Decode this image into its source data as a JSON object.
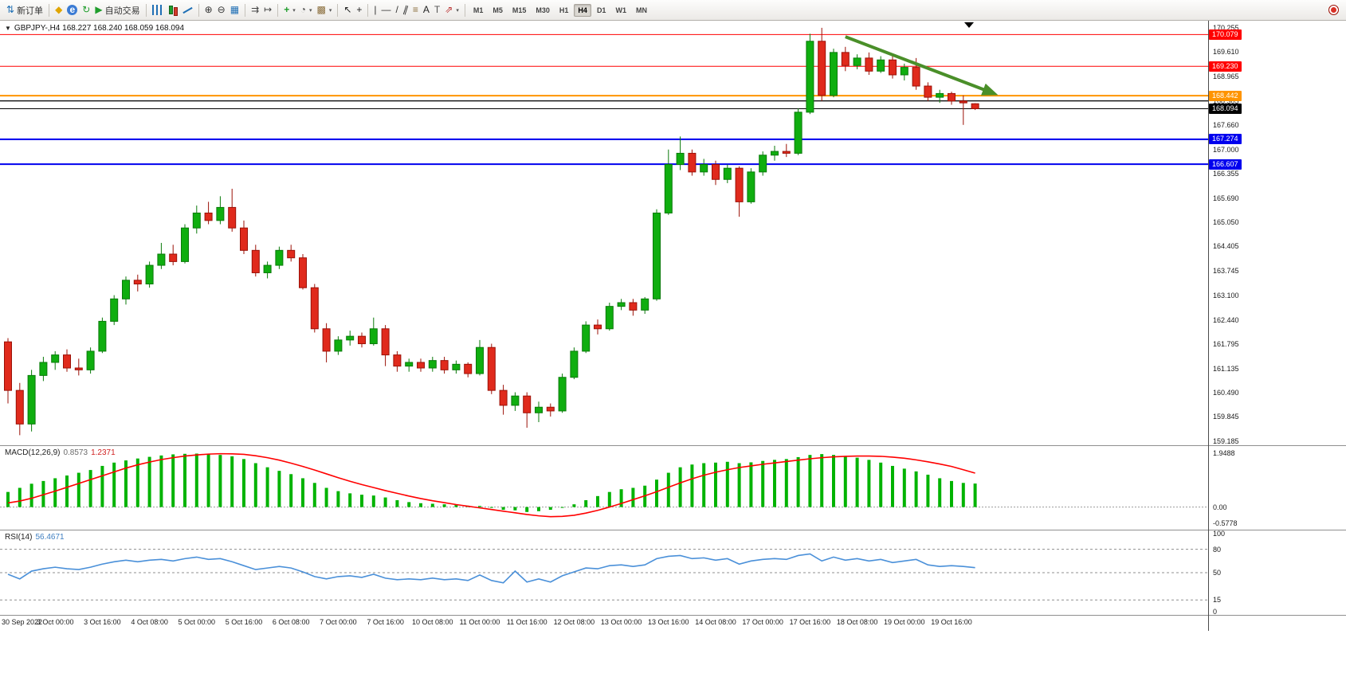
{
  "toolbar": {
    "items": [
      {
        "kind": "button",
        "name": "new-order",
        "icon": "new-order-icon",
        "glyph": "⇅",
        "color": "#1f6fb5",
        "label": "新订单"
      },
      {
        "kind": "sep"
      },
      {
        "kind": "button",
        "name": "metaquotes",
        "icon": "metaquotes-icon",
        "glyph": "◆",
        "color": "#e0a500"
      },
      {
        "kind": "button",
        "name": "community",
        "icon": "community-icon",
        "glyph": "e",
        "color": "#ffffff",
        "circle": "#3b7bd4"
      },
      {
        "kind": "button",
        "name": "refresh",
        "icon": "refresh-icon",
        "glyph": "↻",
        "color": "#1f9d2c"
      },
      {
        "kind": "button",
        "name": "auto-trading",
        "icon": "autotrade-play-icon",
        "glyph": "▶",
        "color": "#1f9d2c",
        "label": "自动交易"
      },
      {
        "kind": "sep"
      },
      {
        "kind": "button",
        "name": "chart-bars",
        "icon": "bar-chart-icon",
        "cls": "i-bars"
      },
      {
        "kind": "button",
        "name": "chart-candles",
        "icon": "candlestick-icon",
        "cls": "i-candles"
      },
      {
        "kind": "button",
        "name": "chart-line",
        "icon": "line-chart-icon",
        "cls": "i-line"
      },
      {
        "kind": "sep"
      },
      {
        "kind": "button",
        "name": "zoom-in",
        "icon": "zoom-in-icon",
        "glyph": "⊕",
        "color": "#333333"
      },
      {
        "kind": "button",
        "name": "zoom-out",
        "icon": "zoom-out-icon",
        "glyph": "⊖",
        "color": "#333333"
      },
      {
        "kind": "button",
        "name": "tile-windows",
        "icon": "tile-windows-icon",
        "glyph": "▦",
        "color": "#1f6fb5"
      },
      {
        "kind": "sep"
      },
      {
        "kind": "button",
        "name": "auto-scroll",
        "icon": "auto-scroll-icon",
        "glyph": "⇉",
        "color": "#444444"
      },
      {
        "kind": "button",
        "name": "chart-shift",
        "icon": "chart-shift-icon",
        "glyph": "↦",
        "color": "#444444"
      },
      {
        "kind": "sep"
      },
      {
        "kind": "button",
        "name": "indicators",
        "icon": "indicators-plus-icon",
        "glyph": "+",
        "color": "#1f9d2c",
        "bold": true,
        "caret": true
      },
      {
        "kind": "button",
        "name": "periods",
        "icon": "clock-icon",
        "glyph": "◔",
        "color": "#555555",
        "caret": true
      },
      {
        "kind": "button",
        "name": "templates",
        "icon": "template-icon",
        "glyph": "▩",
        "color": "#8a6d3b",
        "caret": true
      },
      {
        "kind": "sep"
      },
      {
        "kind": "button",
        "name": "cursor",
        "icon": "cursor-arrow-icon",
        "glyph": "↖",
        "color": "#222222"
      },
      {
        "kind": "button",
        "name": "crosshair",
        "icon": "crosshair-icon",
        "glyph": "+",
        "color": "#222222"
      },
      {
        "kind": "sep"
      },
      {
        "kind": "button",
        "name": "vertical-line",
        "icon": "vertical-line-icon",
        "glyph": "|",
        "color": "#333333"
      },
      {
        "kind": "button",
        "name": "horizontal-line",
        "icon": "horizontal-line-icon",
        "glyph": "—",
        "color": "#333333"
      },
      {
        "kind": "button",
        "name": "trendline",
        "icon": "trendline-icon",
        "glyph": "/",
        "color": "#333333"
      },
      {
        "kind": "button",
        "name": "channel",
        "icon": "channel-icon",
        "glyph": "∥",
        "color": "#333333",
        "tilt": true
      },
      {
        "kind": "button",
        "name": "fibonacci",
        "icon": "fibonacci-icon",
        "glyph": "≡",
        "color": "#8a6d3b"
      },
      {
        "kind": "button",
        "name": "text",
        "icon": "text-icon",
        "glyph": "A",
        "color": "#222222"
      },
      {
        "kind": "button",
        "name": "text-label",
        "icon": "text-label-icon",
        "glyph": "T",
        "color": "#555555"
      },
      {
        "kind": "button",
        "name": "arrows",
        "icon": "arrow-object-icon",
        "glyph": "⇗",
        "color": "#bb3333",
        "caret": true
      },
      {
        "kind": "sep"
      }
    ],
    "timeframes": [
      "M1",
      "M5",
      "M15",
      "M30",
      "H1",
      "H4",
      "D1",
      "W1",
      "MN"
    ],
    "active_timeframe": "H4"
  },
  "chart": {
    "title": "GBPJPY-,H4 168.227 168.240 168.059 168.094",
    "collapse_arrow": "▼"
  },
  "indicators": {
    "macd": {
      "label": "MACD(12,26,9)",
      "value_main": "0.8573",
      "value_signal": "1.2371"
    },
    "rsi": {
      "label": "RSI(14)",
      "value": "56.4671"
    }
  },
  "chart_data": [
    {
      "type": "candlestick",
      "symbol": "GBPJPY-",
      "timeframe": "H4",
      "last_ohlc": {
        "open": 168.227,
        "high": 168.24,
        "low": 168.059,
        "close": 168.094
      },
      "ylim": [
        159.06,
        170.45
      ],
      "grid": false,
      "axis_ticks": [
        "170.255",
        "169.610",
        "168.965",
        "168.305",
        "167.660",
        "167.000",
        "166.355",
        "165.690",
        "165.050",
        "164.405",
        "163.745",
        "163.100",
        "162.440",
        "161.795",
        "161.135",
        "160.490",
        "159.845",
        "159.185"
      ],
      "hlines": [
        {
          "price": 170.079,
          "label": "170.079",
          "color": "#ff0000",
          "width": 1,
          "tag": true
        },
        {
          "price": 169.23,
          "label": "169.230",
          "color": "#ff0000",
          "width": 1,
          "tag": true
        },
        {
          "price": 168.442,
          "label": "168.442",
          "color": "#ff9400",
          "width": 2,
          "tag": true
        },
        {
          "price": 168.305,
          "label": null,
          "color": "#1a1a1a",
          "width": 1.5,
          "tag": false
        },
        {
          "price": 167.274,
          "label": "167.274",
          "color": "#0000ee",
          "width": 2,
          "tag": true
        },
        {
          "price": 166.607,
          "label": "166.607",
          "color": "#0000ee",
          "width": 2,
          "tag": true
        }
      ],
      "bid": {
        "price": 168.094,
        "label": "168.094",
        "color": "#000000"
      },
      "trend_arrow": {
        "from_index": 71,
        "from_price": 170.02,
        "to_index": 83.6,
        "to_price": 168.5,
        "color": "#4a8f29"
      },
      "colors": {
        "up": "#0fae0f",
        "up_border": "#0a7a0a",
        "down": "#e02a1c",
        "down_border": "#9b1107"
      },
      "x_labels": [
        "30 Sep 2022",
        "3 Oct 00:00",
        "3 Oct 16:00",
        "4 Oct 08:00",
        "5 Oct 00:00",
        "5 Oct 16:00",
        "6 Oct 08:00",
        "7 Oct 00:00",
        "7 Oct 16:00",
        "10 Oct 08:00",
        "11 Oct 00:00",
        "11 Oct 16:00",
        "12 Oct 08:00",
        "13 Oct 00:00",
        "13 Oct 16:00",
        "14 Oct 08:00",
        "17 Oct 00:00",
        "17 Oct 16:00",
        "18 Oct 08:00",
        "19 Oct 00:00",
        "19 Oct 16:00"
      ],
      "x_label_every_n_candles": 4,
      "candles_ohlc": [
        [
          161.85,
          161.95,
          160.2,
          160.55
        ],
        [
          160.55,
          160.75,
          159.35,
          159.65
        ],
        [
          159.65,
          161.1,
          159.45,
          160.95
        ],
        [
          160.95,
          161.45,
          160.8,
          161.3
        ],
        [
          161.3,
          161.6,
          161.1,
          161.5
        ],
        [
          161.5,
          161.65,
          161.05,
          161.15
        ],
        [
          161.15,
          161.4,
          160.95,
          161.1
        ],
        [
          161.1,
          161.7,
          161.0,
          161.6
        ],
        [
          161.6,
          162.5,
          161.55,
          162.4
        ],
        [
          162.4,
          163.1,
          162.3,
          163.0
        ],
        [
          163.0,
          163.6,
          162.85,
          163.5
        ],
        [
          163.5,
          163.65,
          163.2,
          163.4
        ],
        [
          163.4,
          164.0,
          163.3,
          163.9
        ],
        [
          163.9,
          164.5,
          163.8,
          164.2
        ],
        [
          164.2,
          164.45,
          163.9,
          164.0
        ],
        [
          164.0,
          165.0,
          163.95,
          164.9
        ],
        [
          164.9,
          165.5,
          164.75,
          165.3
        ],
        [
          165.3,
          165.6,
          165.0,
          165.1
        ],
        [
          165.1,
          165.75,
          165.0,
          165.45
        ],
        [
          165.45,
          165.95,
          164.8,
          164.9
        ],
        [
          164.9,
          165.1,
          164.2,
          164.3
        ],
        [
          164.3,
          164.45,
          163.6,
          163.7
        ],
        [
          163.7,
          164.0,
          163.55,
          163.9
        ],
        [
          163.9,
          164.4,
          163.8,
          164.3
        ],
        [
          164.3,
          164.45,
          164.0,
          164.1
        ],
        [
          164.1,
          164.2,
          163.25,
          163.3
        ],
        [
          163.3,
          163.4,
          162.1,
          162.2
        ],
        [
          162.2,
          162.35,
          161.3,
          161.6
        ],
        [
          161.6,
          162.0,
          161.5,
          161.9
        ],
        [
          161.9,
          162.15,
          161.75,
          162.0
        ],
        [
          162.0,
          162.1,
          161.7,
          161.8
        ],
        [
          161.8,
          162.5,
          161.75,
          162.2
        ],
        [
          162.2,
          162.3,
          161.2,
          161.5
        ],
        [
          161.5,
          161.6,
          161.05,
          161.2
        ],
        [
          161.2,
          161.4,
          161.05,
          161.3
        ],
        [
          161.3,
          161.4,
          161.05,
          161.15
        ],
        [
          161.15,
          161.45,
          161.05,
          161.35
        ],
        [
          161.35,
          161.45,
          161.0,
          161.1
        ],
        [
          161.1,
          161.35,
          161.0,
          161.25
        ],
        [
          161.25,
          161.3,
          160.9,
          161.0
        ],
        [
          161.0,
          161.9,
          160.95,
          161.7
        ],
        [
          161.7,
          161.8,
          160.45,
          160.55
        ],
        [
          160.55,
          160.7,
          159.9,
          160.15
        ],
        [
          160.15,
          160.5,
          160.0,
          160.4
        ],
        [
          160.4,
          160.5,
          159.55,
          159.95
        ],
        [
          159.95,
          160.25,
          159.7,
          160.1
        ],
        [
          160.1,
          160.2,
          159.85,
          160.0
        ],
        [
          160.0,
          161.0,
          159.95,
          160.9
        ],
        [
          160.9,
          161.7,
          160.85,
          161.6
        ],
        [
          161.6,
          162.4,
          161.55,
          162.3
        ],
        [
          162.3,
          162.45,
          162.05,
          162.2
        ],
        [
          162.2,
          162.9,
          162.15,
          162.8
        ],
        [
          162.8,
          163.0,
          162.7,
          162.9
        ],
        [
          162.9,
          163.0,
          162.55,
          162.7
        ],
        [
          162.7,
          163.05,
          162.6,
          163.0
        ],
        [
          163.0,
          165.4,
          162.95,
          165.3
        ],
        [
          165.3,
          167.0,
          165.25,
          166.6
        ],
        [
          166.6,
          167.35,
          166.45,
          166.9
        ],
        [
          166.9,
          167.0,
          166.3,
          166.4
        ],
        [
          166.4,
          166.75,
          166.3,
          166.6
        ],
        [
          166.6,
          166.7,
          166.05,
          166.2
        ],
        [
          166.2,
          166.6,
          166.1,
          166.5
        ],
        [
          166.5,
          166.55,
          165.2,
          165.6
        ],
        [
          165.6,
          166.5,
          165.55,
          166.4
        ],
        [
          166.4,
          166.95,
          166.3,
          166.85
        ],
        [
          166.85,
          167.1,
          166.7,
          166.95
        ],
        [
          166.95,
          167.15,
          166.8,
          166.9
        ],
        [
          166.9,
          168.1,
          166.85,
          168.0
        ],
        [
          168.0,
          170.1,
          167.95,
          169.9
        ],
        [
          169.9,
          170.26,
          168.3,
          168.45
        ],
        [
          168.45,
          169.7,
          168.4,
          169.6
        ],
        [
          169.6,
          169.75,
          169.1,
          169.25
        ],
        [
          169.25,
          169.55,
          169.15,
          169.45
        ],
        [
          169.45,
          169.6,
          169.0,
          169.1
        ],
        [
          169.1,
          169.5,
          169.05,
          169.4
        ],
        [
          169.4,
          169.55,
          168.9,
          169.0
        ],
        [
          169.0,
          169.3,
          168.85,
          169.2
        ],
        [
          169.2,
          169.45,
          168.6,
          168.7
        ],
        [
          168.7,
          168.8,
          168.3,
          168.4
        ],
        [
          168.4,
          168.6,
          168.25,
          168.5
        ],
        [
          168.5,
          168.55,
          168.2,
          168.3
        ],
        [
          168.3,
          168.45,
          167.66,
          168.25
        ],
        [
          168.227,
          168.24,
          168.059,
          168.094
        ]
      ]
    },
    {
      "type": "bar",
      "name": "MACD(12,26,9)",
      "value_main": 0.8573,
      "value_signal": 1.2371,
      "ylim": [
        -0.65,
        2.05
      ],
      "axis_ticks": [
        "1.9488",
        "0.00",
        "-0.5778"
      ],
      "colors": {
        "histogram": "#00b300",
        "signal": "#ff0000"
      },
      "histogram": [
        0.55,
        0.7,
        0.85,
        0.95,
        1.05,
        1.15,
        1.25,
        1.35,
        1.5,
        1.62,
        1.7,
        1.77,
        1.83,
        1.88,
        1.92,
        1.94,
        1.9488,
        1.94,
        1.9,
        1.85,
        1.75,
        1.6,
        1.45,
        1.32,
        1.2,
        1.05,
        0.88,
        0.7,
        0.58,
        0.5,
        0.45,
        0.42,
        0.35,
        0.25,
        0.18,
        0.14,
        0.12,
        0.1,
        0.08,
        0.05,
        0.04,
        -0.02,
        -0.1,
        -0.12,
        -0.18,
        -0.15,
        -0.1,
        -0.02,
        0.1,
        0.25,
        0.4,
        0.55,
        0.65,
        0.7,
        0.78,
        1.0,
        1.25,
        1.45,
        1.55,
        1.6,
        1.62,
        1.65,
        1.6,
        1.63,
        1.68,
        1.72,
        1.75,
        1.82,
        1.9,
        1.93,
        1.9,
        1.85,
        1.8,
        1.72,
        1.62,
        1.5,
        1.4,
        1.3,
        1.18,
        1.05,
        0.95,
        0.88,
        0.8573
      ],
      "signal": [
        0.15,
        0.22,
        0.32,
        0.45,
        0.58,
        0.72,
        0.86,
        1.0,
        1.14,
        1.28,
        1.42,
        1.54,
        1.64,
        1.73,
        1.8,
        1.86,
        1.9,
        1.93,
        1.945,
        1.94,
        1.92,
        1.87,
        1.8,
        1.71,
        1.6,
        1.48,
        1.35,
        1.21,
        1.07,
        0.94,
        0.82,
        0.71,
        0.6,
        0.5,
        0.4,
        0.31,
        0.23,
        0.16,
        0.09,
        0.03,
        -0.03,
        -0.09,
        -0.15,
        -0.21,
        -0.27,
        -0.32,
        -0.35,
        -0.34,
        -0.3,
        -0.22,
        -0.12,
        0.0,
        0.13,
        0.27,
        0.41,
        0.56,
        0.72,
        0.88,
        1.03,
        1.16,
        1.27,
        1.36,
        1.44,
        1.5,
        1.56,
        1.61,
        1.66,
        1.71,
        1.76,
        1.8,
        1.83,
        1.85,
        1.86,
        1.86,
        1.85,
        1.82,
        1.78,
        1.72,
        1.65,
        1.57,
        1.48,
        1.36,
        1.2371
      ]
    },
    {
      "type": "line",
      "name": "RSI(14)",
      "value": 56.4671,
      "ylim": [
        0,
        100
      ],
      "levels": [
        80,
        50,
        15
      ],
      "axis_ticks": [
        "100",
        "80",
        "50",
        "15",
        "0"
      ],
      "color": "#4a90d9",
      "values": [
        48,
        42,
        52,
        55,
        57,
        55,
        54,
        57,
        61,
        64,
        66,
        64,
        66,
        67,
        65,
        68,
        70,
        67,
        68,
        64,
        59,
        54,
        56,
        58,
        56,
        51,
        45,
        42,
        45,
        46,
        44,
        48,
        43,
        41,
        42,
        41,
        43,
        41,
        42,
        40,
        47,
        40,
        37,
        52,
        38,
        42,
        38,
        46,
        51,
        56,
        55,
        59,
        60,
        58,
        60,
        68,
        71,
        72,
        68,
        69,
        66,
        68,
        61,
        65,
        67,
        68,
        67,
        72,
        74,
        65,
        70,
        66,
        68,
        65,
        67,
        63,
        65,
        67,
        60,
        58,
        59,
        58,
        56.4671
      ]
    }
  ]
}
